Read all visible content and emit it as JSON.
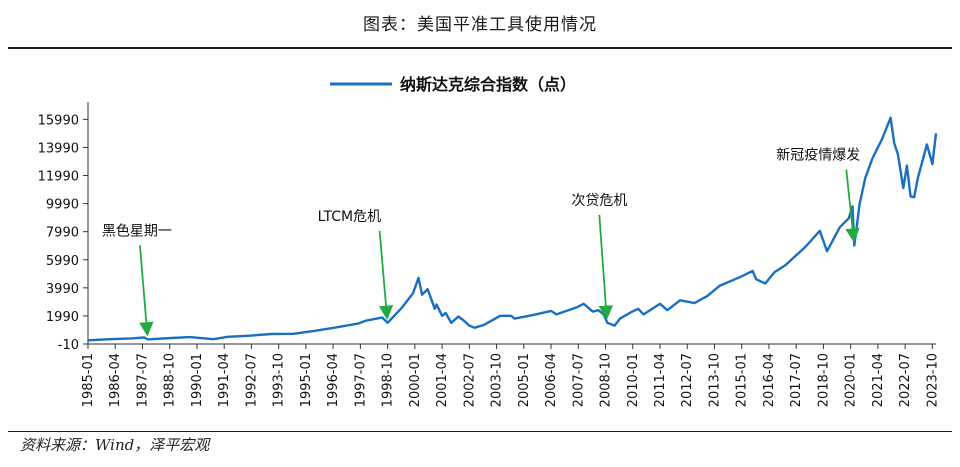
{
  "figure_title": "图表：美国平准工具使用情况",
  "source_note": "资料来源：Wind，泽平宏观",
  "colors": {
    "series": "#1a6fc0",
    "arrow": "#22aa44",
    "axis": "#333333"
  },
  "chart_data": {
    "type": "line",
    "series": [
      {
        "name": "纳斯达克综合指数（点）"
      }
    ],
    "y_ticks": [
      -10,
      1990,
      3990,
      5990,
      7990,
      9990,
      11990,
      13990,
      15990
    ],
    "ylim": [
      -10,
      16800
    ],
    "x_tick_labels": [
      "1985-01",
      "1986-04",
      "1987-07",
      "1988-10",
      "1990-01",
      "1991-04",
      "1992-07",
      "1993-10",
      "1995-01",
      "1996-04",
      "1997-07",
      "1998-10",
      "2000-01",
      "2001-04",
      "2002-07",
      "2003-10",
      "2005-01",
      "2006-04",
      "2007-07",
      "2008-10",
      "2010-01",
      "2011-04",
      "2012-07",
      "2013-10",
      "2015-01",
      "2016-04",
      "2017-07",
      "2018-10",
      "2020-01",
      "2021-04",
      "2022-07",
      "2023-10"
    ],
    "xlim": [
      "1985-01",
      "2023-12"
    ],
    "points": [
      [
        "1985-01",
        250
      ],
      [
        "1986-01",
        330
      ],
      [
        "1987-01",
        390
      ],
      [
        "1987-08",
        450
      ],
      [
        "1987-10",
        320
      ],
      [
        "1988-06",
        380
      ],
      [
        "1989-09",
        480
      ],
      [
        "1990-10",
        330
      ],
      [
        "1991-06",
        500
      ],
      [
        "1992-06",
        580
      ],
      [
        "1993-06",
        700
      ],
      [
        "1994-06",
        720
      ],
      [
        "1995-06",
        930
      ],
      [
        "1996-06",
        1180
      ],
      [
        "1997-06",
        1460
      ],
      [
        "1997-10",
        1650
      ],
      [
        "1998-07",
        1880
      ],
      [
        "1998-10",
        1500
      ],
      [
        "1999-06",
        2600
      ],
      [
        "1999-12",
        3600
      ],
      [
        "2000-03",
        4700
      ],
      [
        "2000-05",
        3500
      ],
      [
        "2000-08",
        3900
      ],
      [
        "2000-12",
        2500
      ],
      [
        "2001-01",
        2800
      ],
      [
        "2001-04",
        2000
      ],
      [
        "2001-06",
        2200
      ],
      [
        "2001-09",
        1500
      ],
      [
        "2002-01",
        1950
      ],
      [
        "2002-04",
        1650
      ],
      [
        "2002-07",
        1300
      ],
      [
        "2002-10",
        1150
      ],
      [
        "2003-03",
        1350
      ],
      [
        "2003-12",
        2000
      ],
      [
        "2004-06",
        2000
      ],
      [
        "2004-08",
        1800
      ],
      [
        "2005-06",
        2050
      ],
      [
        "2006-04",
        2350
      ],
      [
        "2006-07",
        2100
      ],
      [
        "2007-06",
        2600
      ],
      [
        "2007-10",
        2850
      ],
      [
        "2008-03",
        2300
      ],
      [
        "2008-06",
        2400
      ],
      [
        "2008-09",
        2100
      ],
      [
        "2008-11",
        1500
      ],
      [
        "2009-03",
        1300
      ],
      [
        "2009-06",
        1800
      ],
      [
        "2009-12",
        2250
      ],
      [
        "2010-04",
        2500
      ],
      [
        "2010-07",
        2100
      ],
      [
        "2011-04",
        2850
      ],
      [
        "2011-08",
        2400
      ],
      [
        "2012-03",
        3100
      ],
      [
        "2012-11",
        2900
      ],
      [
        "2013-06",
        3400
      ],
      [
        "2014-01",
        4150
      ],
      [
        "2014-12",
        4750
      ],
      [
        "2015-07",
        5200
      ],
      [
        "2015-09",
        4600
      ],
      [
        "2016-02",
        4300
      ],
      [
        "2016-07",
        5100
      ],
      [
        "2017-01",
        5600
      ],
      [
        "2017-12",
        6900
      ],
      [
        "2018-08",
        8050
      ],
      [
        "2018-12",
        6600
      ],
      [
        "2019-07",
        8300
      ],
      [
        "2019-12",
        8950
      ],
      [
        "2020-02",
        9800
      ],
      [
        "2020-03",
        7000
      ],
      [
        "2020-06",
        10000
      ],
      [
        "2020-09",
        11800
      ],
      [
        "2021-01",
        13200
      ],
      [
        "2021-04",
        14000
      ],
      [
        "2021-06",
        14500
      ],
      [
        "2021-11",
        16100
      ],
      [
        "2022-01",
        14300
      ],
      [
        "2022-03",
        13500
      ],
      [
        "2022-06",
        11100
      ],
      [
        "2022-08",
        12700
      ],
      [
        "2022-10",
        10500
      ],
      [
        "2022-12",
        10450
      ],
      [
        "2023-02",
        11800
      ],
      [
        "2023-07",
        14200
      ],
      [
        "2023-10",
        12800
      ],
      [
        "2023-12",
        15000
      ]
    ],
    "annotations": [
      {
        "text": "黑色星期一",
        "date": "1987-10"
      },
      {
        "text": "LTCM危机",
        "date": "1998-10"
      },
      {
        "text": "次贷危机",
        "date": "2008-11"
      },
      {
        "text": "新冠疫情爆发",
        "date": "2020-03"
      }
    ],
    "grid": false,
    "legend_position": "top-center"
  }
}
